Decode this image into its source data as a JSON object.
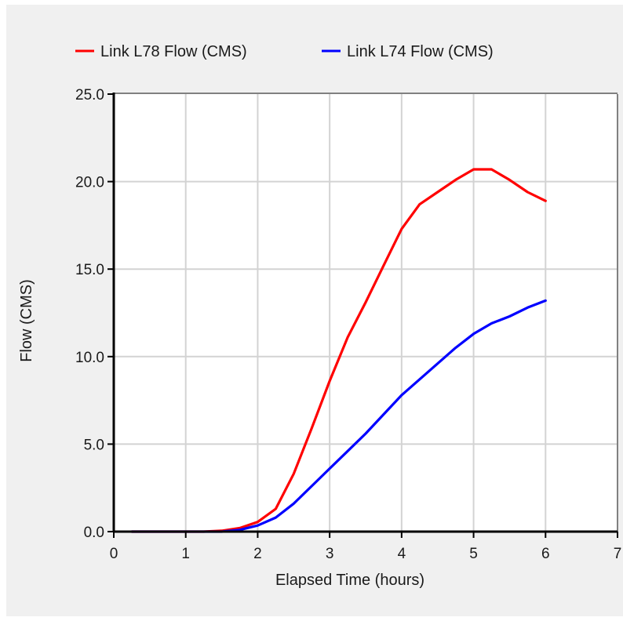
{
  "chart_data": {
    "type": "line",
    "xlabel": "Elapsed Time (hours)",
    "ylabel": "Flow (CMS)",
    "xlim": [
      0,
      7
    ],
    "ylim": [
      0,
      25
    ],
    "x_ticks": [
      0,
      1,
      2,
      3,
      4,
      5,
      6,
      7
    ],
    "y_ticks": [
      0,
      5,
      10,
      15,
      20,
      25
    ],
    "x_tick_labels": [
      "0",
      "1",
      "2",
      "3",
      "4",
      "5",
      "6",
      "7"
    ],
    "y_tick_labels": [
      "0.0",
      "5.0",
      "10.0",
      "15.0",
      "20.0",
      "25.0"
    ],
    "grid": true,
    "legend_position": "top",
    "series": [
      {
        "name": "Link L78 Flow (CMS)",
        "color": "#ff0000",
        "x": [
          0.25,
          0.5,
          0.75,
          1.0,
          1.25,
          1.5,
          1.75,
          2.0,
          2.25,
          2.5,
          2.75,
          3.0,
          3.25,
          3.5,
          3.75,
          4.0,
          4.25,
          4.5,
          4.75,
          5.0,
          5.25,
          5.5,
          5.75,
          6.0
        ],
        "values": [
          0.0,
          0.0,
          0.0,
          0.0,
          0.0,
          0.05,
          0.2,
          0.55,
          1.3,
          3.3,
          5.9,
          8.6,
          11.1,
          13.1,
          15.2,
          17.3,
          18.7,
          19.4,
          20.1,
          20.7,
          20.7,
          20.1,
          19.4,
          18.9
        ]
      },
      {
        "name": "Link L74 Flow (CMS)",
        "color": "#0000ff",
        "x": [
          0.25,
          0.5,
          0.75,
          1.0,
          1.25,
          1.5,
          1.75,
          2.0,
          2.25,
          2.5,
          2.75,
          3.0,
          3.25,
          3.5,
          3.75,
          4.0,
          4.25,
          4.5,
          4.75,
          5.0,
          5.25,
          5.5,
          5.75,
          6.0
        ],
        "values": [
          0.0,
          0.0,
          0.0,
          0.0,
          0.0,
          0.0,
          0.1,
          0.35,
          0.8,
          1.6,
          2.6,
          3.6,
          4.6,
          5.6,
          6.7,
          7.8,
          8.7,
          9.6,
          10.5,
          11.3,
          11.9,
          12.3,
          12.8,
          13.2
        ]
      }
    ]
  }
}
